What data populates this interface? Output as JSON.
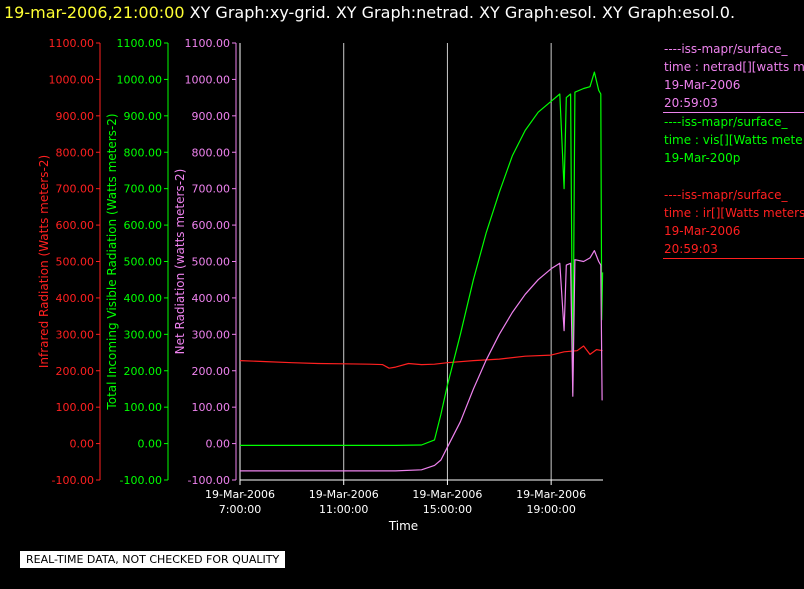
{
  "header": {
    "timestamp": "19-mar-2006,21:00:00",
    "graphs": "XY Graph:xy-grid.  XY Graph:netrad.  XY Graph:esol.  XY Graph:esol.0."
  },
  "legend": [
    {
      "source": "----iss-mapr/surface_",
      "variable": "time : netrad[][watts m",
      "date": "19-Mar-2006",
      "time": "20:59:03",
      "color": "#ee82ee"
    },
    {
      "source": "----iss-mapr/surface_",
      "variable": "time : vis[][Watts mete",
      "date": "19-Mar-200p",
      "time": "",
      "color": "#00ff00"
    },
    {
      "source": "----iss-mapr/surface_",
      "variable": "time : ir[][Watts meters",
      "date": "19-Mar-2006",
      "time": "20:59:03",
      "color": "#ff2020"
    }
  ],
  "notice": "REAL-TIME DATA, NOT CHECKED FOR QUALITY",
  "colors": {
    "background": "#000000",
    "infrared": "#ff2020",
    "visible": "#00ff00",
    "net": "#ee82ee",
    "grid": "#ffffff",
    "header_stamp": "#ffff33"
  },
  "chart_data": {
    "type": "line",
    "xlabel": "Time",
    "x_ticks": [
      {
        "hour": 7,
        "date": "19-Mar-2006",
        "time": "7:00:00"
      },
      {
        "hour": 11,
        "date": "19-Mar-2006",
        "time": "11:00:00"
      },
      {
        "hour": 15,
        "date": "19-Mar-2006",
        "time": "15:00:00"
      },
      {
        "hour": 19,
        "date": "19-Mar-2006",
        "time": "19:00:00"
      }
    ],
    "xlim": [
      "19-Mar-2006 7:00:00",
      "19-Mar-2006 21:00:00"
    ],
    "grid": true,
    "axes": [
      {
        "id": "ir",
        "label": "Infrared Radiation (Watts meters-2)",
        "ylim": [
          -100,
          1100
        ],
        "color": "#ff2020",
        "ticks": [
          "-100.00",
          "0.00",
          "100.00",
          "200.00",
          "300.00",
          "400.00",
          "500.00",
          "600.00",
          "700.00",
          "800.00",
          "900.00",
          "1000.00",
          "1100.00"
        ]
      },
      {
        "id": "vis",
        "label": "Total Incoming Visible Radiation (Watts meters-2)",
        "ylim": [
          -100,
          1100
        ],
        "color": "#00ff00",
        "ticks": [
          "-100.00",
          "0.00",
          "100.00",
          "200.00",
          "300.00",
          "400.00",
          "500.00",
          "600.00",
          "700.00",
          "800.00",
          "900.00",
          "1000.00",
          "1100.00"
        ]
      },
      {
        "id": "net",
        "label": "Net Radiation (watts meters-2)",
        "ylim": [
          -100,
          1100
        ],
        "color": "#ee82ee",
        "ticks": [
          "-100.00",
          "0.00",
          "100.00",
          "200.00",
          "300.00",
          "400.00",
          "500.00",
          "600.00",
          "700.00",
          "800.00",
          "900.00",
          "1000.00",
          "1100.00"
        ]
      }
    ],
    "series": [
      {
        "axis": "ir",
        "color": "#ff2020",
        "points": [
          [
            "19-Mar-2006 7:00:00",
            228
          ],
          [
            "19-Mar-2006 8:00:00",
            225
          ],
          [
            "19-Mar-2006 9:00:00",
            222
          ],
          [
            "19-Mar-2006 10:00:00",
            220
          ],
          [
            "19-Mar-2006 11:00:00",
            219
          ],
          [
            "19-Mar-2006 12:00:00",
            218
          ],
          [
            "19-Mar-2006 12:30:00",
            217
          ],
          [
            "19-Mar-2006 12:45:00",
            207
          ],
          [
            "19-Mar-2006 13:00:00",
            210
          ],
          [
            "19-Mar-2006 13:30:00",
            220
          ],
          [
            "19-Mar-2006 14:00:00",
            217
          ],
          [
            "19-Mar-2006 14:30:00",
            218
          ],
          [
            "19-Mar-2006 15:00:00",
            222
          ],
          [
            "19-Mar-2006 16:00:00",
            228
          ],
          [
            "19-Mar-2006 17:00:00",
            232
          ],
          [
            "19-Mar-2006 18:00:00",
            240
          ],
          [
            "19-Mar-2006 19:00:00",
            243
          ],
          [
            "19-Mar-2006 19:30:00",
            252
          ],
          [
            "19-Mar-2006 20:00:00",
            255
          ],
          [
            "19-Mar-2006 20:15:00",
            268
          ],
          [
            "19-Mar-2006 20:30:00",
            245
          ],
          [
            "19-Mar-2006 20:45:00",
            258
          ],
          [
            "19-Mar-2006 20:59:00",
            255
          ]
        ]
      },
      {
        "axis": "vis",
        "color": "#00ff00",
        "points": [
          [
            "19-Mar-2006 7:00:00",
            -5
          ],
          [
            "19-Mar-2006 9:00:00",
            -5
          ],
          [
            "19-Mar-2006 11:00:00",
            -5
          ],
          [
            "19-Mar-2006 13:00:00",
            -5
          ],
          [
            "19-Mar-2006 14:00:00",
            -4
          ],
          [
            "19-Mar-2006 14:30:00",
            10
          ],
          [
            "19-Mar-2006 14:45:00",
            80
          ],
          [
            "19-Mar-2006 15:00:00",
            160
          ],
          [
            "19-Mar-2006 15:30:00",
            300
          ],
          [
            "19-Mar-2006 16:00:00",
            450
          ],
          [
            "19-Mar-2006 16:30:00",
            580
          ],
          [
            "19-Mar-2006 17:00:00",
            690
          ],
          [
            "19-Mar-2006 17:30:00",
            790
          ],
          [
            "19-Mar-2006 18:00:00",
            860
          ],
          [
            "19-Mar-2006 18:30:00",
            910
          ],
          [
            "19-Mar-2006 19:00:00",
            940
          ],
          [
            "19-Mar-2006 19:20:00",
            960
          ],
          [
            "19-Mar-2006 19:30:00",
            700
          ],
          [
            "19-Mar-2006 19:35:00",
            950
          ],
          [
            "19-Mar-2006 19:45:00",
            960
          ],
          [
            "19-Mar-2006 19:50:00",
            140
          ],
          [
            "19-Mar-2006 19:55:00",
            965
          ],
          [
            "19-Mar-2006 20:15:00",
            975
          ],
          [
            "19-Mar-2006 20:30:00",
            980
          ],
          [
            "19-Mar-2006 20:40:00",
            1020
          ],
          [
            "19-Mar-2006 20:50:00",
            970
          ],
          [
            "19-Mar-2006 20:55:00",
            960
          ],
          [
            "19-Mar-2006 20:57:00",
            340
          ],
          [
            "19-Mar-2006 20:59:00",
            470
          ]
        ]
      },
      {
        "axis": "net",
        "color": "#ee82ee",
        "points": [
          [
            "19-Mar-2006 7:00:00",
            -75
          ],
          [
            "19-Mar-2006 9:00:00",
            -75
          ],
          [
            "19-Mar-2006 11:00:00",
            -75
          ],
          [
            "19-Mar-2006 13:00:00",
            -75
          ],
          [
            "19-Mar-2006 14:00:00",
            -72
          ],
          [
            "19-Mar-2006 14:30:00",
            -60
          ],
          [
            "19-Mar-2006 14:45:00",
            -45
          ],
          [
            "19-Mar-2006 15:00:00",
            -10
          ],
          [
            "19-Mar-2006 15:30:00",
            60
          ],
          [
            "19-Mar-2006 16:00:00",
            150
          ],
          [
            "19-Mar-2006 16:30:00",
            230
          ],
          [
            "19-Mar-2006 17:00:00",
            300
          ],
          [
            "19-Mar-2006 17:30:00",
            360
          ],
          [
            "19-Mar-2006 18:00:00",
            410
          ],
          [
            "19-Mar-2006 18:30:00",
            450
          ],
          [
            "19-Mar-2006 19:00:00",
            480
          ],
          [
            "19-Mar-2006 19:20:00",
            495
          ],
          [
            "19-Mar-2006 19:30:00",
            310
          ],
          [
            "19-Mar-2006 19:35:00",
            490
          ],
          [
            "19-Mar-2006 19:45:00",
            495
          ],
          [
            "19-Mar-2006 19:50:00",
            130
          ],
          [
            "19-Mar-2006 19:55:00",
            505
          ],
          [
            "19-Mar-2006 20:15:00",
            500
          ],
          [
            "19-Mar-2006 20:30:00",
            510
          ],
          [
            "19-Mar-2006 20:40:00",
            530
          ],
          [
            "19-Mar-2006 20:50:00",
            500
          ],
          [
            "19-Mar-2006 20:55:00",
            490
          ],
          [
            "19-Mar-2006 20:58:00",
            120
          ],
          [
            "19-Mar-2006 20:59:00",
            120
          ]
        ]
      }
    ]
  }
}
